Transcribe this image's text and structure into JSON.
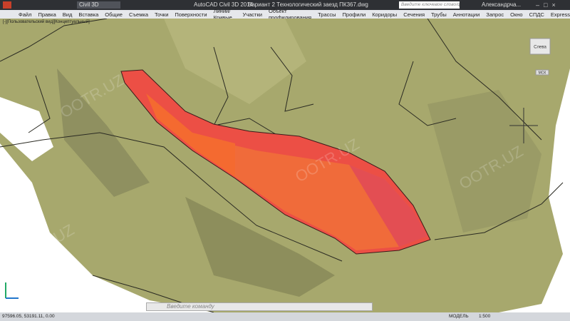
{
  "title_bar": {
    "workspace": "Civil 3D",
    "app_name": "AutoCAD Civil 3D 2014",
    "file_name": "Вариант 2 Технологический заезд ПК367.dwg",
    "search_placeholder": "Введите ключевое слово/фразу",
    "user": "Александрча..."
  },
  "menu": [
    "Файл",
    "Правка",
    "Вид",
    "Вставка",
    "Общие",
    "Съемка",
    "Точки",
    "Поверхности",
    "Линии/Кривые",
    "Участки",
    "Объект профилирования",
    "Трассы",
    "Профили",
    "Коридоры",
    "Сечения",
    "Трубы",
    "Аннотации",
    "Запрос",
    "Окно",
    "СПДС",
    "Express"
  ],
  "viewport": {
    "label": "[-][Пользовательский вид][Концептуальный]",
    "viewcube_face": "Слева",
    "ucs": "МСК",
    "watermark": "OOTR.UZ"
  },
  "command_line": {
    "placeholder": "Введите команду"
  },
  "status_bar": {
    "coordinates": "97596.05, 53191.11, 0.00",
    "space": "МОДЕЛЬ",
    "scale": "1:500"
  }
}
